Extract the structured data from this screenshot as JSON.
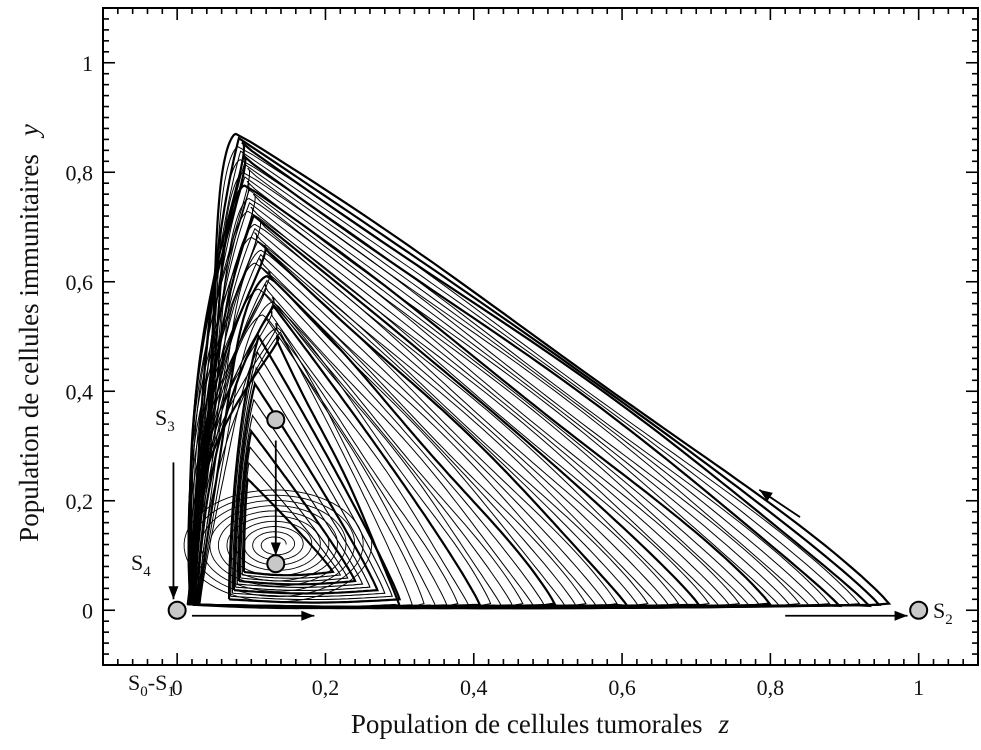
{
  "chart_data": {
    "type": "line",
    "subtype": "phase-portrait",
    "title": "",
    "xlabel": "Population de cellules tumorales",
    "xvar": "z",
    "ylabel": "Population de cellules immunitaires",
    "yvar": "y",
    "xlim": [
      -0.1,
      1.08
    ],
    "ylim": [
      -0.1,
      1.1
    ],
    "xticks": [
      {
        "value": 0,
        "label": "0"
      },
      {
        "value": 0.2,
        "label": "0,2"
      },
      {
        "value": 0.4,
        "label": "0,4"
      },
      {
        "value": 0.6,
        "label": "0,6"
      },
      {
        "value": 0.8,
        "label": "0,8"
      },
      {
        "value": 1,
        "label": "1"
      }
    ],
    "yticks": [
      {
        "value": 0,
        "label": "0"
      },
      {
        "value": 0.2,
        "label": "0,2"
      },
      {
        "value": 0.4,
        "label": "0,4"
      },
      {
        "value": 0.6,
        "label": "0,6"
      },
      {
        "value": 0.8,
        "label": "0,8"
      },
      {
        "value": 1,
        "label": "1"
      }
    ],
    "grid": false,
    "colors": {
      "line": "#000000",
      "point_fill": "#c8c8c8",
      "frame": "#000000"
    },
    "fixed_points": [
      {
        "name": "S3",
        "label": "S",
        "sub": "3",
        "z": 0.133,
        "y": 0.348
      },
      {
        "name": "S4",
        "label": "S",
        "sub": "4",
        "z": 0.133,
        "y": 0.085
      },
      {
        "name": "S0-S1",
        "label": "S",
        "sub": "0",
        "label2": "-S",
        "sub2": "1",
        "z": 0.0,
        "y": 0.0
      },
      {
        "name": "S2",
        "label": "S",
        "sub": "2",
        "z": 1.0,
        "y": 0.0
      }
    ],
    "outer_orbit": {
      "z_min": 0.02,
      "z_max": 0.96,
      "y_peak": 0.87
    },
    "inner_orbit": {
      "z_min": 0.07,
      "z_max": 0.3,
      "y_peak": 0.5
    },
    "spiral_focus": {
      "z": 0.133,
      "y": 0.12
    },
    "arrows": [
      {
        "name": "arrow-s3-down",
        "from": [
          0.133,
          0.31
        ],
        "to": [
          0.133,
          0.1
        ]
      },
      {
        "name": "arrow-s4-label",
        "from": [
          -0.005,
          0.27
        ],
        "to": [
          -0.005,
          0.02
        ]
      },
      {
        "name": "arrow-origin-right",
        "from": [
          0.02,
          -0.01
        ],
        "to": [
          0.185,
          -0.01
        ]
      },
      {
        "name": "arrow-to-s2",
        "from": [
          0.82,
          -0.01
        ],
        "to": [
          0.985,
          -0.01
        ]
      },
      {
        "name": "arrow-diagonal",
        "from": [
          0.84,
          0.17
        ],
        "to": [
          0.785,
          0.22
        ]
      }
    ]
  }
}
